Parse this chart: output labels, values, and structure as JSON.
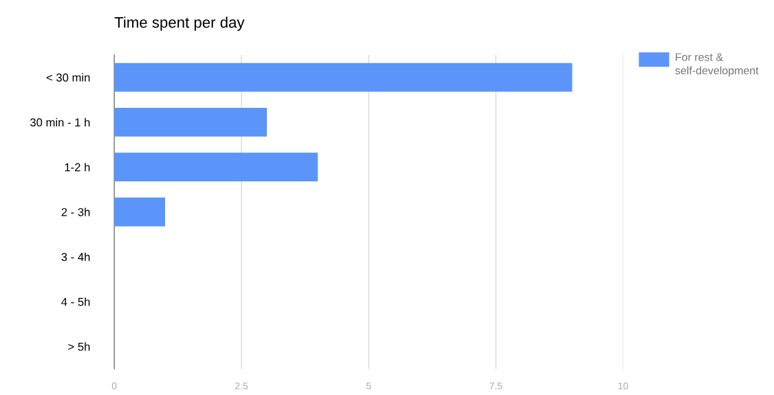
{
  "chart_data": {
    "type": "bar",
    "orientation": "horizontal",
    "title": "Time spent per day",
    "categories": [
      "< 30 min",
      "30 min - 1 h",
      "1-2 h",
      "2 - 3h",
      "3 - 4h",
      "4 - 5h",
      "> 5h"
    ],
    "series": [
      {
        "name": "For rest & self-development",
        "color": "#5b95f9",
        "values": [
          9,
          3,
          4,
          1,
          0,
          0,
          0
        ]
      }
    ],
    "xlim": [
      0,
      10
    ],
    "xticks": [
      0,
      2.5,
      5,
      7.5,
      10
    ],
    "grid": "x",
    "legend": "top right"
  }
}
